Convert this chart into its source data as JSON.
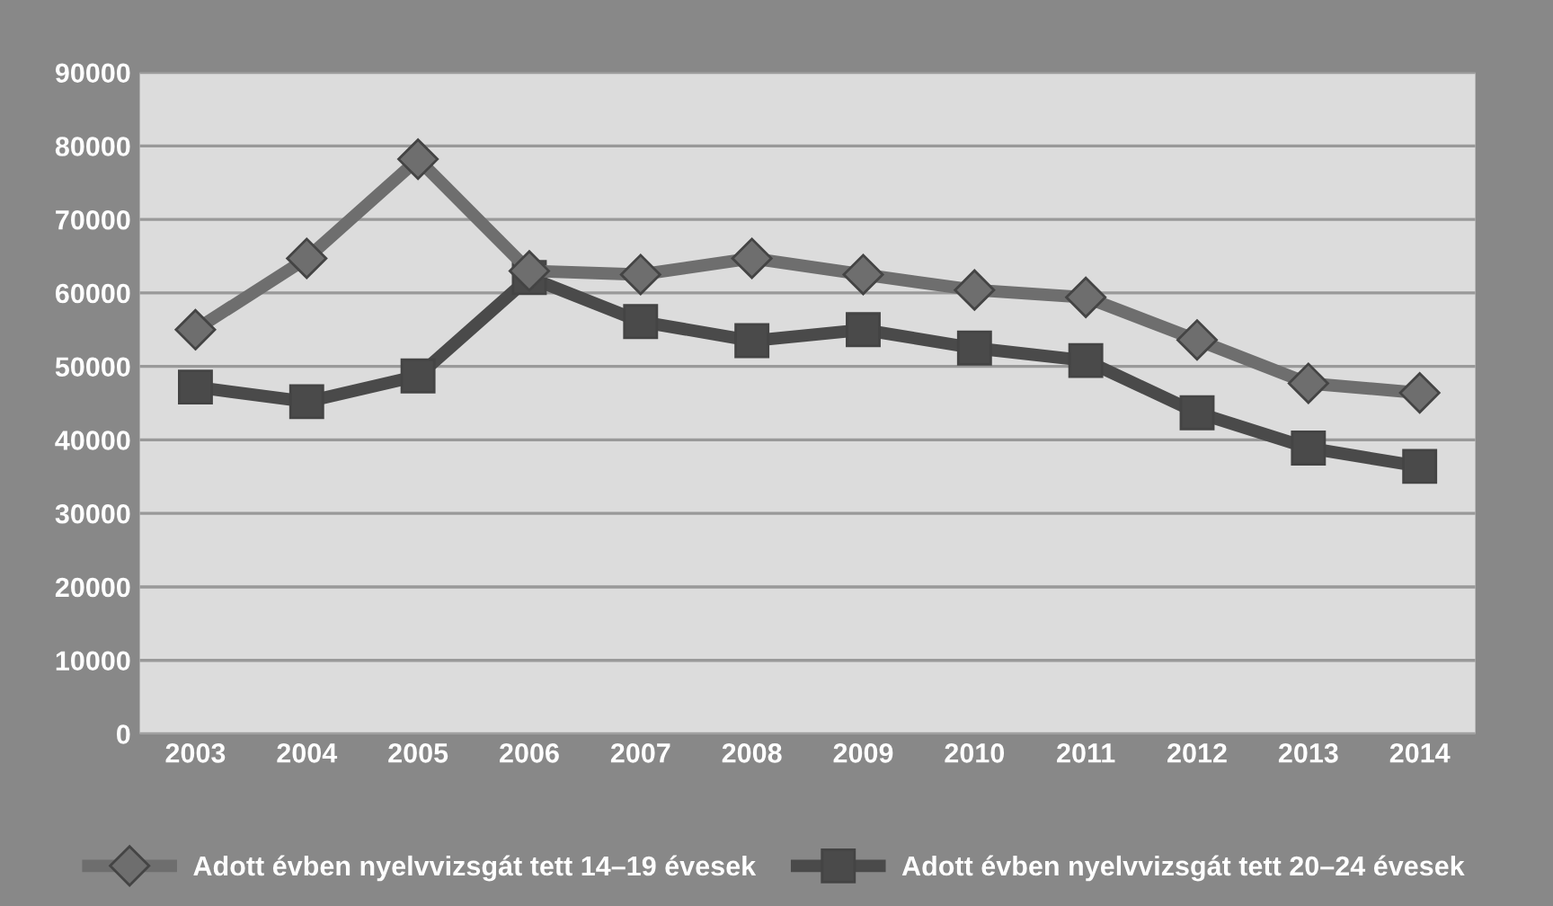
{
  "chart_data": {
    "type": "line",
    "categories": [
      "2003",
      "2004",
      "2005",
      "2006",
      "2007",
      "2008",
      "2009",
      "2010",
      "2011",
      "2012",
      "2013",
      "2014"
    ],
    "series": [
      {
        "name": "Adott évben nyelvvizsgát tett 14–19 évesek",
        "color": "#6e6e6e",
        "marker": "diamond",
        "values": [
          55000,
          64700,
          78200,
          63000,
          62500,
          64700,
          62500,
          60400,
          59400,
          53600,
          47700,
          46400
        ]
      },
      {
        "name": "Adott évben nyelvvizsgát tett 20–24 évesek",
        "color": "#4a4a4a",
        "marker": "square",
        "values": [
          47200,
          45200,
          48700,
          62100,
          56100,
          53500,
          55000,
          52500,
          50800,
          43700,
          38900,
          36400
        ]
      }
    ],
    "ylim": [
      0,
      90000
    ],
    "yticks": [
      0,
      10000,
      20000,
      30000,
      40000,
      50000,
      60000,
      70000,
      80000,
      90000
    ],
    "grid": "y",
    "legend": "bottom",
    "line_style": "solid"
  }
}
